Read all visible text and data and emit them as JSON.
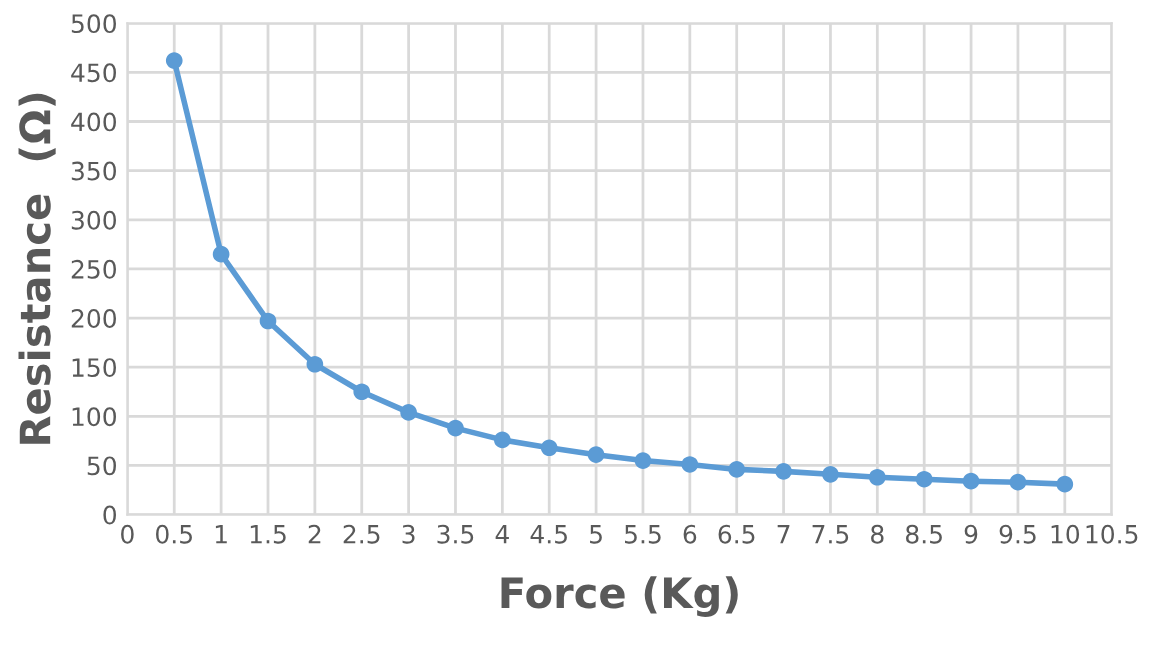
{
  "chart_data": {
    "type": "line",
    "xlabel": "Force (Kg)",
    "ylabel": "Resistance  (Ω)",
    "x": [
      0.5,
      1,
      1.5,
      2,
      2.5,
      3,
      3.5,
      4,
      4.5,
      5,
      5.5,
      6,
      6.5,
      7,
      7.5,
      8,
      8.5,
      9,
      9.5,
      10
    ],
    "series": [
      {
        "color": "#5b9bd5",
        "values": [
          462,
          265,
          197,
          153,
          125,
          104,
          88,
          76,
          68,
          61,
          55,
          51,
          46,
          44,
          41,
          38,
          36,
          34,
          33,
          31
        ]
      }
    ],
    "xlim": [
      0,
      10.5
    ],
    "xticks": [
      0,
      0.5,
      1,
      1.5,
      2,
      2.5,
      3,
      3.5,
      4,
      4.5,
      5,
      5.5,
      6,
      6.5,
      7,
      7.5,
      8,
      8.5,
      9,
      9.5,
      10,
      10.5
    ],
    "ylim": [
      0,
      500
    ],
    "yticks": [
      0,
      50,
      100,
      150,
      200,
      250,
      300,
      350,
      400,
      450,
      500
    ],
    "grid": true,
    "marker": "circle",
    "line_style": "solid",
    "legend": false
  }
}
